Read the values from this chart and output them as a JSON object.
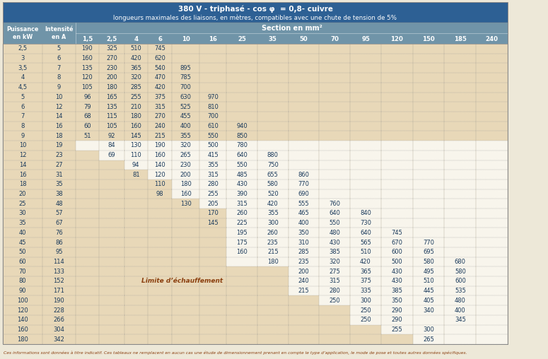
{
  "title_line1": "380 V - triphasé - cos φ  = 0,8- cuivre",
  "title_line2": "longueurs maximales des liaisons, en mètres, compatibles avec une chute de tension de 5%",
  "section_header": "Section en mm²",
  "col_headers": [
    "Puissance\nen kW",
    "Intensité\nen A",
    "1,5",
    "2,5",
    "4",
    "6",
    "10",
    "16",
    "25",
    "35",
    "50",
    "70",
    "95",
    "120",
    "150",
    "185",
    "240"
  ],
  "rows": [
    [
      "2,5",
      "5",
      "190",
      "325",
      "510",
      "745",
      "",
      "",
      "",
      "",
      "",
      "",
      "",
      "",
      "",
      "",
      ""
    ],
    [
      "3",
      "6",
      "160",
      "270",
      "420",
      "620",
      "",
      "",
      "",
      "",
      "",
      "",
      "",
      "",
      "",
      "",
      ""
    ],
    [
      "3,5",
      "7",
      "135",
      "230",
      "365",
      "540",
      "895",
      "",
      "",
      "",
      "",
      "",
      "",
      "",
      "",
      "",
      ""
    ],
    [
      "4",
      "8",
      "120",
      "200",
      "320",
      "470",
      "785",
      "",
      "",
      "",
      "",
      "",
      "",
      "",
      "",
      "",
      ""
    ],
    [
      "4,5",
      "9",
      "105",
      "180",
      "285",
      "420",
      "700",
      "",
      "",
      "",
      "",
      "",
      "",
      "",
      "",
      "",
      ""
    ],
    [
      "5",
      "10",
      "96",
      "165",
      "255",
      "375",
      "630",
      "970",
      "",
      "",
      "",
      "",
      "",
      "",
      "",
      "",
      ""
    ],
    [
      "6",
      "12",
      "79",
      "135",
      "210",
      "315",
      "525",
      "810",
      "",
      "",
      "",
      "",
      "",
      "",
      "",
      "",
      ""
    ],
    [
      "7",
      "14",
      "68",
      "115",
      "180",
      "270",
      "455",
      "700",
      "",
      "",
      "",
      "",
      "",
      "",
      "",
      "",
      ""
    ],
    [
      "8",
      "16",
      "60",
      "105",
      "160",
      "240",
      "400",
      "610",
      "940",
      "",
      "",
      "",
      "",
      "",
      "",
      "",
      ""
    ],
    [
      "9",
      "18",
      "51",
      "92",
      "145",
      "215",
      "355",
      "550",
      "850",
      "",
      "",
      "",
      "",
      "",
      "",
      "",
      ""
    ],
    [
      "10",
      "19",
      "",
      "84",
      "130",
      "190",
      "320",
      "500",
      "780",
      "",
      "",
      "",
      "",
      "",
      "",
      "",
      ""
    ],
    [
      "12",
      "23",
      "",
      "69",
      "110",
      "160",
      "265",
      "415",
      "640",
      "880",
      "",
      "",
      "",
      "",
      "",
      "",
      ""
    ],
    [
      "14",
      "27",
      "",
      "",
      "94",
      "140",
      "230",
      "355",
      "550",
      "750",
      "",
      "",
      "",
      "",
      "",
      "",
      ""
    ],
    [
      "16",
      "31",
      "",
      "",
      "81",
      "120",
      "200",
      "315",
      "485",
      "655",
      "860",
      "",
      "",
      "",
      "",
      "",
      ""
    ],
    [
      "18",
      "35",
      "",
      "",
      "",
      "110",
      "180",
      "280",
      "430",
      "580",
      "770",
      "",
      "",
      "",
      "",
      "",
      ""
    ],
    [
      "20",
      "38",
      "",
      "",
      "",
      "98",
      "160",
      "255",
      "390",
      "520",
      "690",
      "",
      "",
      "",
      "",
      "",
      ""
    ],
    [
      "25",
      "48",
      "",
      "",
      "",
      "",
      "130",
      "205",
      "315",
      "420",
      "555",
      "760",
      "",
      "",
      "",
      "",
      ""
    ],
    [
      "30",
      "57",
      "",
      "",
      "",
      "",
      "",
      "170",
      "260",
      "355",
      "465",
      "640",
      "840",
      "",
      "",
      "",
      ""
    ],
    [
      "35",
      "67",
      "",
      "",
      "",
      "",
      "",
      "145",
      "225",
      "300",
      "400",
      "550",
      "730",
      "",
      "",
      "",
      ""
    ],
    [
      "40",
      "76",
      "",
      "",
      "",
      "",
      "",
      "",
      "195",
      "260",
      "350",
      "480",
      "640",
      "745",
      "",
      "",
      ""
    ],
    [
      "45",
      "86",
      "",
      "",
      "",
      "",
      "",
      "",
      "175",
      "235",
      "310",
      "430",
      "565",
      "670",
      "770",
      "",
      ""
    ],
    [
      "50",
      "95",
      "",
      "",
      "",
      "",
      "",
      "",
      "160",
      "215",
      "285",
      "385",
      "510",
      "600",
      "695",
      "",
      ""
    ],
    [
      "60",
      "114",
      "",
      "",
      "",
      "",
      "",
      "",
      "",
      "180",
      "235",
      "320",
      "420",
      "500",
      "580",
      "680",
      ""
    ],
    [
      "70",
      "133",
      "",
      "",
      "",
      "",
      "",
      "",
      "",
      "",
      "200",
      "275",
      "365",
      "430",
      "495",
      "580",
      ""
    ],
    [
      "80",
      "152",
      "",
      "",
      "",
      "",
      "",
      "",
      "",
      "",
      "240",
      "315",
      "375",
      "430",
      "510",
      "600",
      ""
    ],
    [
      "90",
      "171",
      "",
      "",
      "",
      "",
      "",
      "",
      "",
      "",
      "215",
      "280",
      "335",
      "385",
      "445",
      "535",
      ""
    ],
    [
      "100",
      "190",
      "",
      "",
      "",
      "",
      "",
      "",
      "",
      "",
      "",
      "250",
      "300",
      "350",
      "405",
      "480",
      ""
    ],
    [
      "120",
      "228",
      "",
      "",
      "",
      "",
      "",
      "",
      "",
      "",
      "",
      "",
      "250",
      "290",
      "340",
      "400",
      ""
    ],
    [
      "140",
      "266",
      "",
      "",
      "",
      "",
      "",
      "",
      "",
      "",
      "",
      "",
      "250",
      "290",
      "",
      "345",
      ""
    ],
    [
      "160",
      "304",
      "",
      "",
      "",
      "",
      "",
      "",
      "",
      "",
      "",
      "",
      "",
      "255",
      "300",
      "",
      ""
    ],
    [
      "180",
      "342",
      "",
      "",
      "",
      "",
      "",
      "",
      "",
      "",
      "",
      "",
      "",
      "",
      "265",
      "",
      ""
    ]
  ],
  "header_bg": "#2d6094",
  "header_text": "#ffffff",
  "col_header_bg": "#7094a8",
  "row_bg_cream": "#f8f5ec",
  "row_bg_beige": "#e8d8b8",
  "data_text": "#1a3a5c",
  "page_bg": "#ede8d8",
  "footer_text": "Ces informations sont données à titre indicatif. Ces tableaux ne remplacent en aucun cas une étude de dimensionnement prenant en compte le type d’application, le mode de pose et toutes autres données spécifiques.",
  "beige_limit_label": "Limite d’échauffement",
  "beige_col_start_per_row": [
    17,
    17,
    17,
    17,
    17,
    17,
    17,
    17,
    17,
    17,
    2,
    3,
    4,
    5,
    6,
    6,
    7,
    8,
    8,
    8,
    8,
    8,
    8,
    10,
    10,
    10,
    11,
    12,
    12,
    13,
    14
  ]
}
